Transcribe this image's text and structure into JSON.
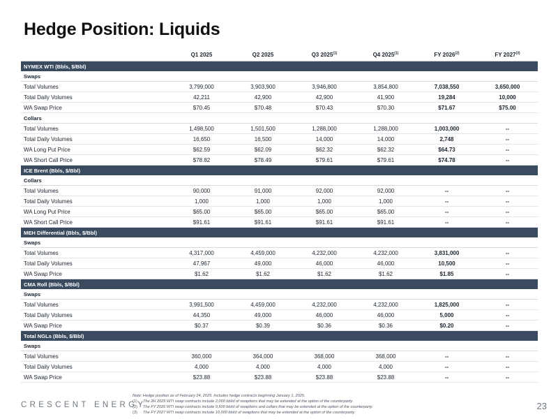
{
  "title": "Hedge Position: Liquids",
  "columns": [
    {
      "label": "Q1 2025",
      "sup": ""
    },
    {
      "label": "Q2 2025",
      "sup": ""
    },
    {
      "label": "Q3 2025",
      "sup": "(1)"
    },
    {
      "label": "Q4 2025",
      "sup": "(1)"
    },
    {
      "label": "FY 2026",
      "sup": "(2)"
    },
    {
      "label": "FY 2027",
      "sup": "(3)"
    }
  ],
  "rows": [
    {
      "kind": "section",
      "label": "NYMEX WTI (Bbls, $/Bbl)"
    },
    {
      "kind": "sub",
      "label": "Swaps"
    },
    {
      "kind": "data",
      "label": "Total Volumes",
      "values": [
        "3,799,000",
        "3,903,900",
        "3,946,800",
        "3,854,800",
        "7,038,550",
        "3,650,000"
      ]
    },
    {
      "kind": "data",
      "label": "Total Daily Volumes",
      "values": [
        "42,211",
        "42,900",
        "42,900",
        "41,900",
        "19,284",
        "10,000"
      ]
    },
    {
      "kind": "data",
      "label": "WA Swap Price",
      "values": [
        "$70.45",
        "$70.48",
        "$70.43",
        "$70.30",
        "$71.67",
        "$75.00"
      ]
    },
    {
      "kind": "sub",
      "label": "Collars"
    },
    {
      "kind": "data",
      "label": "Total Volumes",
      "values": [
        "1,498,500",
        "1,501,500",
        "1,288,000",
        "1,288,000",
        "1,003,000",
        "--"
      ]
    },
    {
      "kind": "data",
      "label": "Total Daily Volumes",
      "values": [
        "16,650",
        "16,500",
        "14,000",
        "14,000",
        "2,748",
        "--"
      ]
    },
    {
      "kind": "data",
      "label": "WA Long Put Price",
      "values": [
        "$62.59",
        "$62.09",
        "$62.32",
        "$62.32",
        "$64.73",
        "--"
      ]
    },
    {
      "kind": "data",
      "label": "WA Short Call Price",
      "values": [
        "$78.82",
        "$78.49",
        "$79.61",
        "$79.61",
        "$74.78",
        "--"
      ]
    },
    {
      "kind": "section",
      "label": "ICE Brent (Bbls, $/Bbl)"
    },
    {
      "kind": "sub",
      "label": "Collars"
    },
    {
      "kind": "data",
      "label": "Total Volumes",
      "values": [
        "90,000",
        "91,000",
        "92,000",
        "92,000",
        "--",
        "--"
      ]
    },
    {
      "kind": "data",
      "label": "Total Daily Volumes",
      "values": [
        "1,000",
        "1,000",
        "1,000",
        "1,000",
        "--",
        "--"
      ]
    },
    {
      "kind": "data",
      "label": "WA Long Put Price",
      "values": [
        "$65.00",
        "$65.00",
        "$65.00",
        "$65.00",
        "--",
        "--"
      ]
    },
    {
      "kind": "data",
      "label": "WA Short Call Price",
      "values": [
        "$91.61",
        "$91.61",
        "$91.61",
        "$91.61",
        "--",
        "--"
      ]
    },
    {
      "kind": "section",
      "label": "MEH Differential (Bbls, $/Bbl)"
    },
    {
      "kind": "sub",
      "label": "Swaps"
    },
    {
      "kind": "data",
      "label": "Total Volumes",
      "values": [
        "4,317,000",
        "4,459,000",
        "4,232,000",
        "4,232,000",
        "3,831,000",
        "--"
      ]
    },
    {
      "kind": "data",
      "label": "Total Daily Volumes",
      "values": [
        "47,967",
        "49,000",
        "46,000",
        "46,000",
        "10,500",
        "--"
      ]
    },
    {
      "kind": "data",
      "label": "WA Swap Price",
      "values": [
        "$1.62",
        "$1.62",
        "$1.62",
        "$1.62",
        "$1.85",
        "--"
      ]
    },
    {
      "kind": "section",
      "label": "CMA Roll (Bbls, $/Bbl)"
    },
    {
      "kind": "sub",
      "label": "Swaps"
    },
    {
      "kind": "data",
      "label": "Total Volumes",
      "values": [
        "3,991,500",
        "4,459,000",
        "4,232,000",
        "4,232,000",
        "1,825,000",
        "--"
      ]
    },
    {
      "kind": "data",
      "label": "Total Daily Volumes",
      "values": [
        "44,350",
        "49,000",
        "46,000",
        "46,000",
        "5,000",
        "--"
      ]
    },
    {
      "kind": "data",
      "label": "WA Swap Price",
      "values": [
        "$0.37",
        "$0.39",
        "$0.36",
        "$0.36",
        "$0.20",
        "--"
      ]
    },
    {
      "kind": "section",
      "label": "Total NGLs (Bbls, $/Bbl)"
    },
    {
      "kind": "sub",
      "label": "Swaps"
    },
    {
      "kind": "data",
      "label": "Total Volumes",
      "values": [
        "360,000",
        "364,000",
        "368,000",
        "368,000",
        "--",
        "--"
      ]
    },
    {
      "kind": "data",
      "label": "Total Daily Volumes",
      "values": [
        "4,000",
        "4,000",
        "4,000",
        "4,000",
        "--",
        "--"
      ]
    },
    {
      "kind": "data",
      "label": "WA Swap Price",
      "values": [
        "$23.88",
        "$23.88",
        "$23.88",
        "$23.88",
        "--",
        "--"
      ]
    }
  ],
  "footnotes": {
    "note": "Note: Hedge position as of February 24, 2025. Includes hedge contracts beginning January 1, 2025.",
    "items": [
      {
        "num": "(1)",
        "text": "The 2H 2025 WTI swap contracts include 2,000 bbl/d of swaptions that may be extended at the option of the counterparty."
      },
      {
        "num": "(2)",
        "text": "The FY 2026 WTI swap contracts include 9,500 bbl/d of swaptions and collars that may be extended at the option of the counterparty."
      },
      {
        "num": "(3)",
        "text": "The FY 2027 WTI swap contracts include 10,000 bbl/d of swaptions that may be extended at the option of the counterparty."
      }
    ]
  },
  "logo": "CRESCENT ENERGY",
  "page_number": "23"
}
